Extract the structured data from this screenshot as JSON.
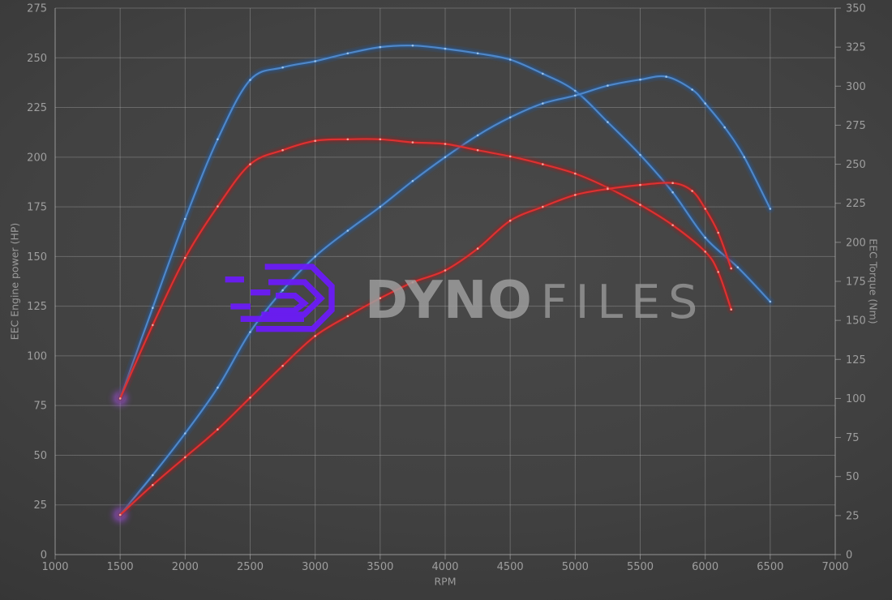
{
  "watermark": {
    "brand_bold": "DYNO",
    "brand_light": "FILES"
  },
  "colors": {
    "blue_core": "#4e87c9",
    "blue_glow": "#1e5fae",
    "blue_hi": "#a8cdf0",
    "red_core": "#de3030",
    "red_glow": "#a31f1f",
    "red_hi": "#ffb3a8",
    "start_glow": "#b146ff",
    "grid": "rgba(190,190,190,0.32)",
    "axis": "rgba(195,195,195,0.5)",
    "tick_text": "#9e9e9e",
    "logo_purple": "#6b1bf7",
    "background_center": "#494949",
    "background_edge": "#2c2c2c"
  },
  "chart_data": {
    "type": "line",
    "title": "",
    "xlabel": "RPM",
    "ylabel_left": "EEC Engine power (HP)",
    "ylabel_right": "EEC Torque (Nm)",
    "xlim": [
      1000,
      7000
    ],
    "ylim_left": [
      0,
      275
    ],
    "ylim_right": [
      0,
      350
    ],
    "grid": true,
    "legend": "none",
    "x_ticks": [
      1000,
      1500,
      2000,
      2500,
      3000,
      3500,
      4000,
      4500,
      5000,
      5500,
      6000,
      6500,
      7000
    ],
    "y_ticks_left": [
      0,
      25,
      50,
      75,
      100,
      125,
      150,
      175,
      200,
      225,
      250,
      275
    ],
    "y_ticks_right": [
      0,
      25,
      50,
      75,
      100,
      125,
      150,
      175,
      200,
      225,
      250,
      275,
      300,
      325,
      350
    ],
    "series": [
      {
        "id": "torque-blue",
        "axis": "right",
        "color_key": "blue",
        "points": [
          [
            1500,
            100
          ],
          [
            1750,
            158
          ],
          [
            2000,
            215
          ],
          [
            2250,
            266
          ],
          [
            2500,
            304
          ],
          [
            2750,
            312
          ],
          [
            3000,
            316
          ],
          [
            3250,
            321
          ],
          [
            3500,
            325
          ],
          [
            3750,
            326
          ],
          [
            4000,
            324
          ],
          [
            4250,
            321
          ],
          [
            4500,
            317
          ],
          [
            4750,
            308
          ],
          [
            5000,
            297
          ],
          [
            5250,
            277
          ],
          [
            5500,
            256
          ],
          [
            5750,
            232
          ],
          [
            6000,
            203
          ],
          [
            6250,
            184
          ],
          [
            6500,
            162
          ]
        ]
      },
      {
        "id": "power-blue",
        "axis": "left",
        "color_key": "blue",
        "points": [
          [
            1500,
            20
          ],
          [
            1750,
            40
          ],
          [
            2000,
            61
          ],
          [
            2250,
            84
          ],
          [
            2500,
            112
          ],
          [
            2750,
            133
          ],
          [
            3000,
            150
          ],
          [
            3250,
            163
          ],
          [
            3500,
            175
          ],
          [
            3750,
            188
          ],
          [
            4000,
            200
          ],
          [
            4250,
            211
          ],
          [
            4500,
            220
          ],
          [
            4750,
            227
          ],
          [
            5000,
            231
          ],
          [
            5250,
            236
          ],
          [
            5500,
            239
          ],
          [
            5700,
            240.5
          ],
          [
            5900,
            234
          ],
          [
            6000,
            227
          ],
          [
            6150,
            215
          ],
          [
            6300,
            200
          ],
          [
            6500,
            174
          ]
        ]
      },
      {
        "id": "torque-red",
        "axis": "right",
        "color_key": "red",
        "points": [
          [
            1500,
            100
          ],
          [
            1750,
            147
          ],
          [
            2000,
            190
          ],
          [
            2250,
            223
          ],
          [
            2500,
            250
          ],
          [
            2750,
            259
          ],
          [
            3000,
            265
          ],
          [
            3250,
            266
          ],
          [
            3500,
            266
          ],
          [
            3750,
            264
          ],
          [
            4000,
            263
          ],
          [
            4250,
            259
          ],
          [
            4500,
            255
          ],
          [
            4750,
            250
          ],
          [
            5000,
            244
          ],
          [
            5250,
            235
          ],
          [
            5500,
            224
          ],
          [
            5750,
            211
          ],
          [
            6000,
            194
          ],
          [
            6100,
            181
          ],
          [
            6200,
            157
          ]
        ]
      },
      {
        "id": "power-red",
        "axis": "left",
        "color_key": "red",
        "points": [
          [
            1500,
            20
          ],
          [
            1750,
            35
          ],
          [
            2000,
            49
          ],
          [
            2250,
            63
          ],
          [
            2500,
            79
          ],
          [
            2750,
            95
          ],
          [
            3000,
            110
          ],
          [
            3250,
            120
          ],
          [
            3500,
            129
          ],
          [
            3750,
            137
          ],
          [
            4000,
            143
          ],
          [
            4250,
            154
          ],
          [
            4500,
            168
          ],
          [
            4750,
            175
          ],
          [
            5000,
            181
          ],
          [
            5250,
            184
          ],
          [
            5500,
            186
          ],
          [
            5750,
            187
          ],
          [
            5900,
            183
          ],
          [
            6000,
            174
          ],
          [
            6100,
            162
          ],
          [
            6200,
            144
          ]
        ]
      }
    ],
    "start_markers": [
      {
        "x": 1500,
        "value": 100,
        "axis": "right"
      },
      {
        "x": 1500,
        "value": 20,
        "axis": "left"
      }
    ]
  }
}
